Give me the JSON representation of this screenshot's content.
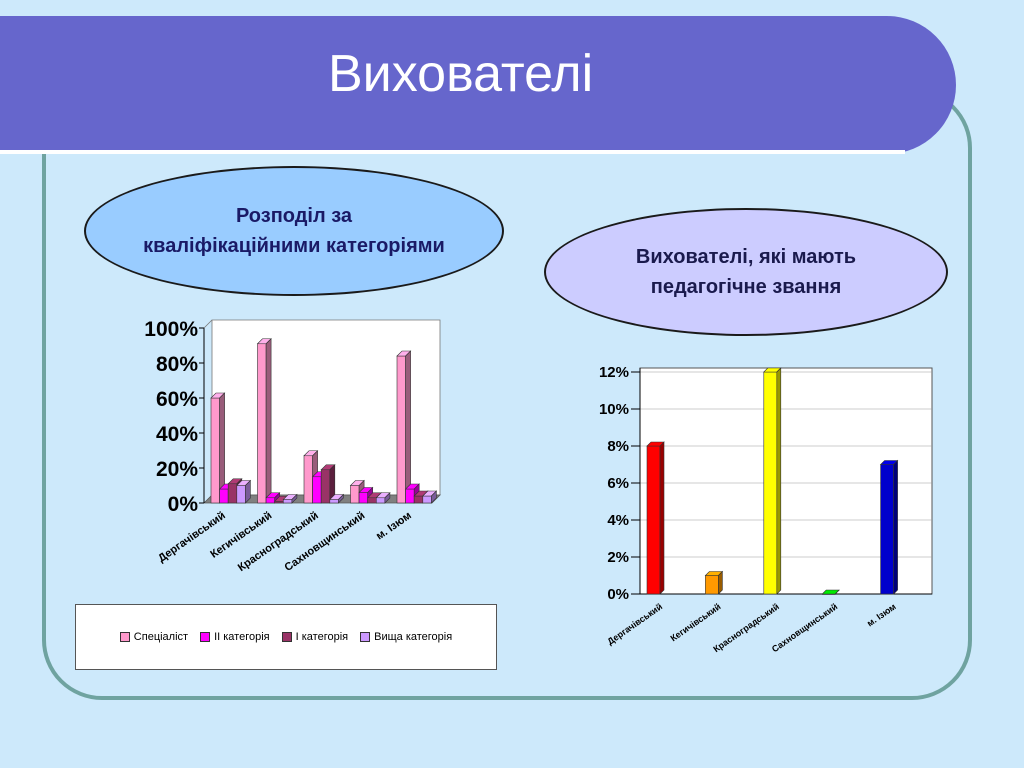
{
  "slide": {
    "title": "Вихователі",
    "left_caption": "Розподіл за\nкваліфікаційними категоріями",
    "right_caption": "Вихователі, які мають\n педагогічне звання"
  },
  "colors": {
    "title_bar": "#6666cc",
    "background": "#cde9fb",
    "frame": "#6fa3a0"
  },
  "chart_data": [
    {
      "type": "bar",
      "categories": [
        "Дергачівський",
        "Кегичівський",
        "Красноградський",
        "Сахновщинський",
        "м. Ізюм"
      ],
      "series": [
        {
          "name": "Спеціаліст",
          "values": [
            60,
            91,
            27,
            10,
            84
          ],
          "color": "#ff99cc"
        },
        {
          "name": "ІІ категорія",
          "values": [
            8,
            3,
            15,
            6,
            8
          ],
          "color": "#ff00ff"
        },
        {
          "name": "І категорія",
          "values": [
            11,
            1,
            19,
            3,
            4
          ],
          "color": "#993366"
        },
        {
          "name": "Вища категорія",
          "values": [
            10,
            2,
            2,
            3,
            4
          ],
          "color": "#cc99ff"
        }
      ],
      "yticks": [
        "0%",
        "20%",
        "40%",
        "60%",
        "80%",
        "100%"
      ],
      "ylim": [
        0,
        100
      ],
      "legend_position": "bottom"
    },
    {
      "type": "bar",
      "categories": [
        "Дергачівський",
        "Кегичівський",
        "Красноградський",
        "Сахновщинський",
        "м. Ізюм"
      ],
      "values": [
        8,
        1,
        12,
        0,
        7
      ],
      "colors": [
        "#ff0000",
        "#ff9900",
        "#ffff00",
        "#00cc00",
        "#0000cc"
      ],
      "yticks": [
        "0%",
        "2%",
        "4%",
        "6%",
        "8%",
        "10%",
        "12%"
      ],
      "ylim": [
        0,
        12
      ],
      "grid": true
    }
  ]
}
